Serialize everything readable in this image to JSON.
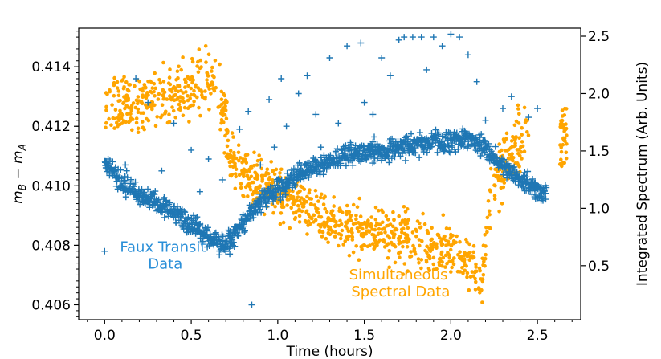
{
  "chart_data": {
    "type": "scatter",
    "title": "",
    "xlabel": "Time (hours)",
    "ylabel": "m_B − m_A",
    "ylabel_parts": {
      "m1": "m",
      "s1": "B",
      "op": " − ",
      "m2": "m",
      "s2": "A"
    },
    "y2label": "Integrated Spectrum (Arb. Units)",
    "xlim": [
      -0.15,
      2.75
    ],
    "ylim": [
      0.4055,
      0.4153
    ],
    "y2lim": [
      0.03,
      2.57
    ],
    "x_ticks": [
      0.0,
      0.5,
      1.0,
      1.5,
      2.0,
      2.5
    ],
    "x_tick_labels": [
      "0.0",
      "0.5",
      "1.0",
      "1.5",
      "2.0",
      "2.5"
    ],
    "y_ticks": [
      0.406,
      0.408,
      0.41,
      0.412,
      0.414
    ],
    "y_tick_labels": [
      "0.406",
      "0.408",
      "0.410",
      "0.412",
      "0.414"
    ],
    "y2_ticks": [
      0.5,
      1.0,
      1.5,
      2.0,
      2.5
    ],
    "y2_tick_labels": [
      "0.5",
      "1.0",
      "1.5",
      "2.0",
      "2.5"
    ],
    "series": [
      {
        "name": "Faux Transit Data",
        "axis": "left",
        "marker": "plus",
        "color": "#1f77b4",
        "label_color": "#2a8fd8",
        "trend": {
          "x": [
            0.0,
            0.1,
            0.2,
            0.3,
            0.4,
            0.5,
            0.6,
            0.65,
            0.7,
            0.75,
            0.8,
            0.9,
            1.0,
            1.1,
            1.2,
            1.3,
            1.4,
            1.5,
            1.6,
            1.7,
            1.8,
            1.9,
            2.0,
            2.1,
            2.15,
            2.2,
            2.3,
            2.4,
            2.5,
            2.55
          ],
          "y": [
            0.4108,
            0.4101,
            0.4097,
            0.4094,
            0.4091,
            0.4087,
            0.4083,
            0.4081,
            0.408,
            0.4083,
            0.4087,
            0.4095,
            0.4099,
            0.4103,
            0.4106,
            0.4108,
            0.411,
            0.4111,
            0.4112,
            0.4113,
            0.4114,
            0.4115,
            0.4115,
            0.4116,
            0.4115,
            0.4113,
            0.4106,
            0.4102,
            0.4099,
            0.4097
          ]
        },
        "scatter": 0.00028,
        "outliers": [
          [
            0.0,
            0.4078
          ],
          [
            0.02,
            0.4109
          ],
          [
            0.12,
            0.4107
          ],
          [
            0.18,
            0.4136
          ],
          [
            0.25,
            0.4128
          ],
          [
            0.33,
            0.4105
          ],
          [
            0.4,
            0.4121
          ],
          [
            0.5,
            0.4112
          ],
          [
            0.55,
            0.4098
          ],
          [
            0.6,
            0.4109
          ],
          [
            0.68,
            0.4102
          ],
          [
            0.72,
            0.4084
          ],
          [
            0.78,
            0.4119
          ],
          [
            0.83,
            0.4125
          ],
          [
            0.85,
            0.406
          ],
          [
            0.9,
            0.4107
          ],
          [
            0.95,
            0.4129
          ],
          [
            0.98,
            0.4113
          ],
          [
            1.02,
            0.4136
          ],
          [
            1.05,
            0.412
          ],
          [
            1.08,
            0.4102
          ],
          [
            1.12,
            0.4131
          ],
          [
            1.17,
            0.4137
          ],
          [
            1.22,
            0.4124
          ],
          [
            1.25,
            0.4113
          ],
          [
            1.3,
            0.4143
          ],
          [
            1.35,
            0.4121
          ],
          [
            1.4,
            0.4147
          ],
          [
            1.45,
            0.4111
          ],
          [
            1.48,
            0.4148
          ],
          [
            1.5,
            0.4128
          ],
          [
            1.55,
            0.4124
          ],
          [
            1.6,
            0.4143
          ],
          [
            1.65,
            0.4137
          ],
          [
            1.7,
            0.4149
          ],
          [
            1.73,
            0.415
          ],
          [
            1.78,
            0.415
          ],
          [
            1.83,
            0.415
          ],
          [
            1.86,
            0.4139
          ],
          [
            1.9,
            0.415
          ],
          [
            1.95,
            0.4147
          ],
          [
            2.0,
            0.4151
          ],
          [
            2.05,
            0.415
          ],
          [
            2.1,
            0.4144
          ],
          [
            2.15,
            0.4135
          ],
          [
            2.2,
            0.4122
          ],
          [
            2.3,
            0.4126
          ],
          [
            2.35,
            0.413
          ],
          [
            2.45,
            0.4123
          ],
          [
            2.5,
            0.4126
          ]
        ]
      },
      {
        "name": "Simultaneous Spectral Data",
        "axis": "right",
        "marker": "dot",
        "color": "#ffa500",
        "label_color": "#ffa500",
        "trend": {
          "x": [
            0.0,
            0.1,
            0.2,
            0.3,
            0.4,
            0.5,
            0.6,
            0.65,
            0.7,
            0.72,
            0.75,
            0.8,
            0.9,
            1.0,
            1.1,
            1.2,
            1.3,
            1.4,
            1.5,
            1.6,
            1.7,
            1.8,
            1.9,
            2.0,
            2.1,
            2.15,
            2.18,
            2.22,
            2.25,
            2.3,
            2.35,
            2.4,
            2.45
          ],
          "y": [
            1.85,
            1.87,
            1.92,
            1.96,
            2.01,
            2.05,
            2.12,
            2.04,
            1.75,
            1.48,
            1.38,
            1.3,
            1.22,
            1.15,
            1.05,
            0.96,
            0.87,
            0.84,
            0.81,
            0.79,
            0.75,
            0.71,
            0.67,
            0.63,
            0.55,
            0.45,
            0.35,
            0.95,
            1.2,
            1.35,
            1.48,
            1.58,
            1.65
          ]
        },
        "scatter": 0.13,
        "extra": {
          "x": [
            2.63,
            2.67
          ],
          "y": [
            1.88,
            1.35
          ]
        }
      }
    ],
    "annotations": [
      {
        "text_lines": [
          "Faux Transit",
          "Data"
        ],
        "color": "#2a8fd8",
        "anchor_x": 0.35,
        "anchor_y2": 0.62
      },
      {
        "text_lines": [
          "Simultaneous",
          "Spectral Data"
        ],
        "color": "#ffa500",
        "anchor_x": 1.71,
        "anchor_y2": 0.38
      }
    ]
  }
}
